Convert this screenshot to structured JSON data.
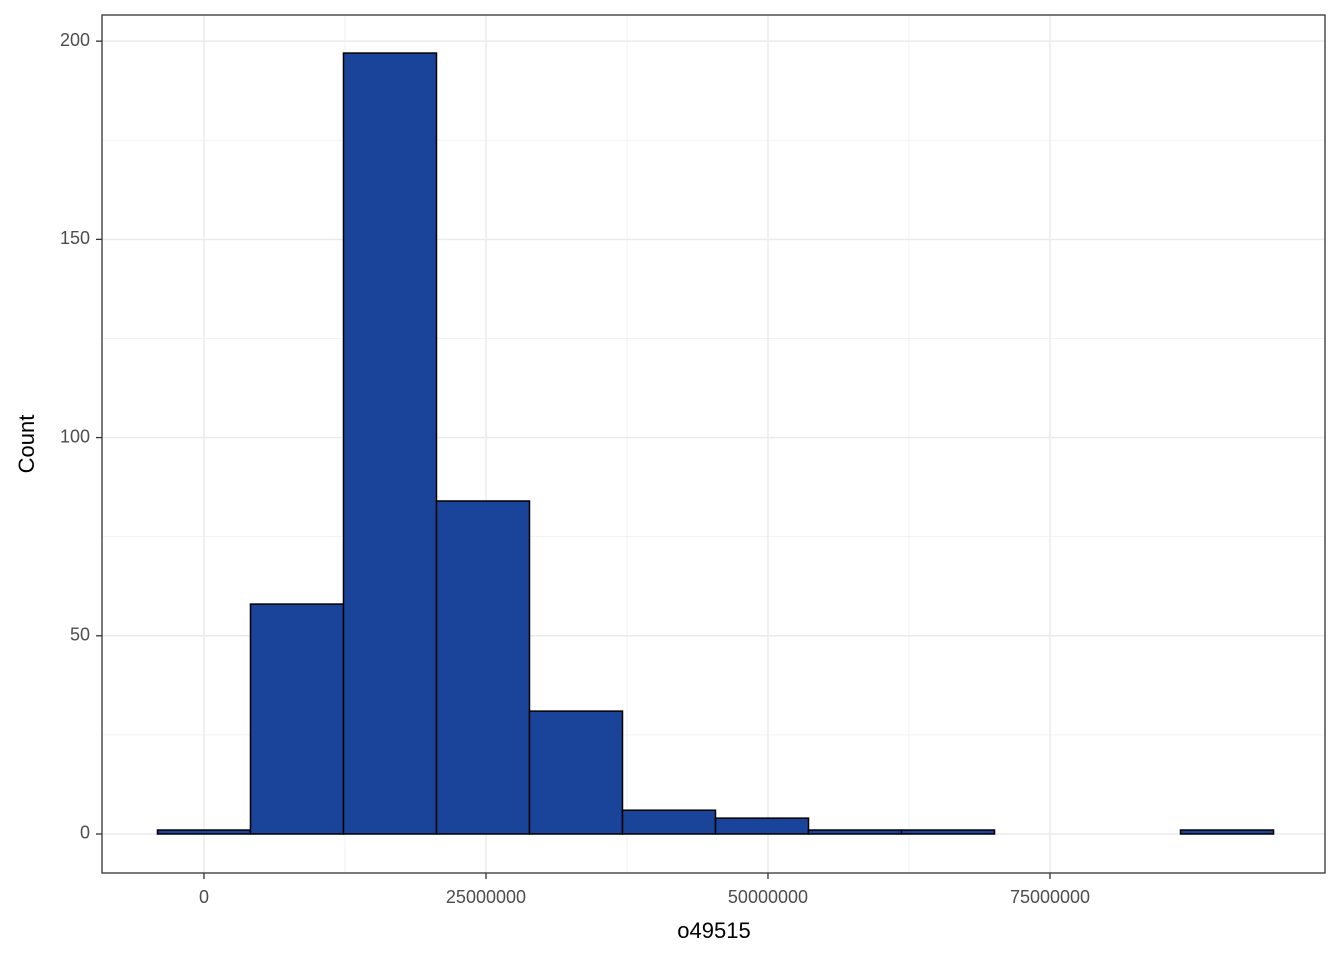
{
  "chart_data": {
    "type": "histogram",
    "x_label": "o49515",
    "y_label": "Count",
    "bins": [
      -4122500,
      4122500,
      12367500,
      20612500,
      28857500,
      37102500,
      45347500,
      53592500,
      61837500,
      70082500,
      78327500,
      86572500,
      94817500
    ],
    "counts": [
      1,
      58,
      197,
      84,
      31,
      6,
      4,
      1,
      1,
      0,
      0,
      1
    ],
    "color": "#1a4499",
    "xlim": [
      -9040000,
      99380000
    ],
    "xticks": [
      0,
      25000000,
      50000000,
      75000000
    ],
    "ylim": [
      -9.84,
      206.6
    ],
    "yticks": [
      0,
      50,
      100,
      150,
      200
    ],
    "grid": true
  }
}
